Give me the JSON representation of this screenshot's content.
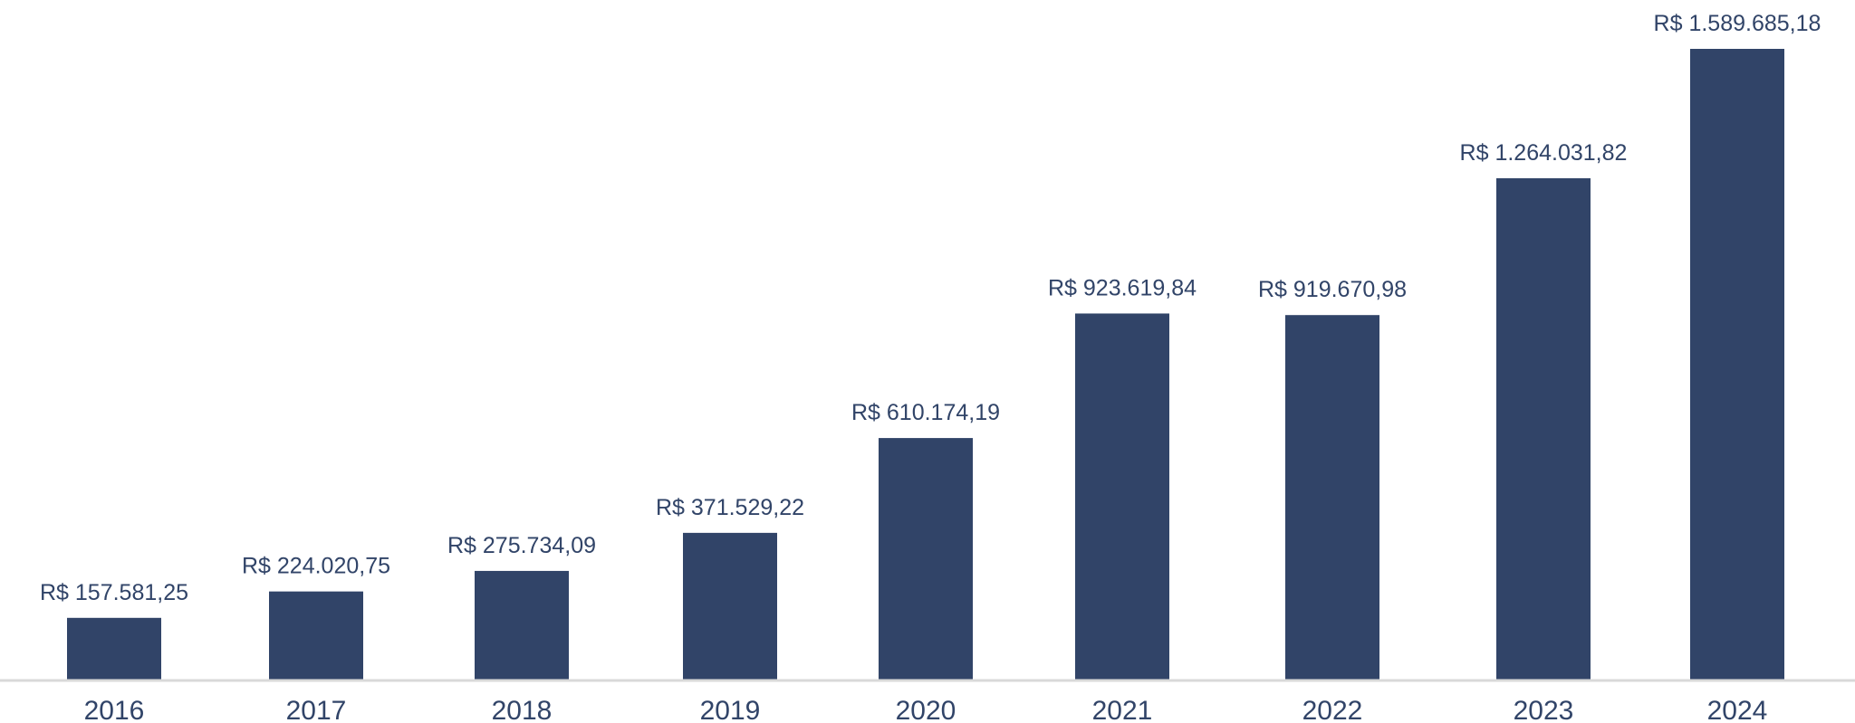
{
  "chart_data": {
    "type": "bar",
    "categories": [
      "2016",
      "2017",
      "2018",
      "2019",
      "2020",
      "2021",
      "2022",
      "2023",
      "2024"
    ],
    "values": [
      157581.25,
      224020.75,
      275734.09,
      371529.22,
      610174.19,
      923619.84,
      919670.98,
      1264031.82,
      1589685.18
    ],
    "data_labels": [
      "R$ 157.581,25",
      "R$ 224.020,75",
      "R$ 275.734,09",
      "R$ 371.529,22",
      "R$ 610.174,19",
      "R$ 923.619,84",
      "R$ 919.670,98",
      "R$ 1.264.031,82",
      "R$ 1.589.685,18"
    ],
    "title": "",
    "xlabel": "",
    "ylabel": "",
    "ylim": [
      0,
      1589685.18
    ],
    "grid": false,
    "legend": "none",
    "colors": {
      "bar": "#314468",
      "text": "#314468",
      "axis": "#d9d9d9"
    }
  }
}
